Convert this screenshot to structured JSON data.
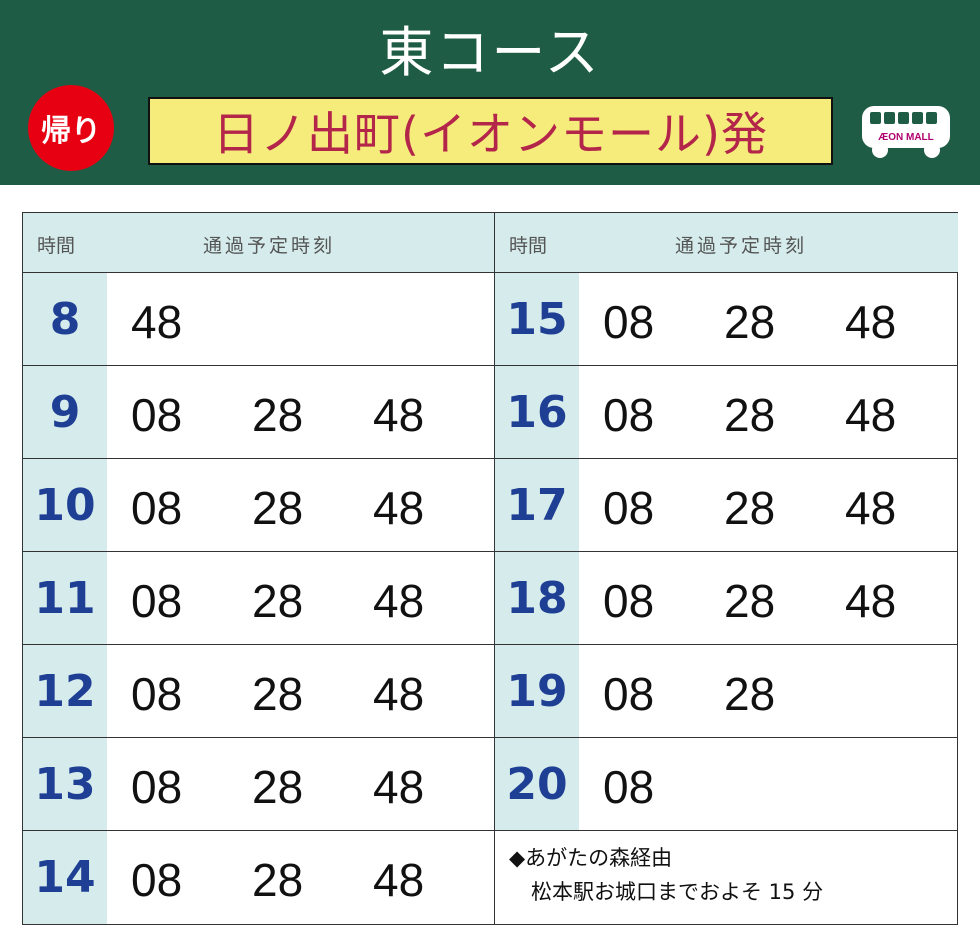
{
  "header": {
    "title": "東コース",
    "badge": "帰り",
    "origin": "日ノ出町(イオンモール)発",
    "bus_logo": "ÆON MALL"
  },
  "colors": {
    "banner": "#1f5c45",
    "badge": "#e60012",
    "origin_bg": "#f6ec7c",
    "origin_text": "#b3264a",
    "hour_text": "#1f3f94",
    "hour_bg": "#d6ecec"
  },
  "table": {
    "col_hour": "時間",
    "col_times": "通過予定時刻",
    "left": [
      {
        "hour": "8",
        "minutes": [
          "48"
        ]
      },
      {
        "hour": "9",
        "minutes": [
          "08",
          "28",
          "48"
        ]
      },
      {
        "hour": "10",
        "minutes": [
          "08",
          "28",
          "48"
        ]
      },
      {
        "hour": "11",
        "minutes": [
          "08",
          "28",
          "48"
        ]
      },
      {
        "hour": "12",
        "minutes": [
          "08",
          "28",
          "48"
        ]
      },
      {
        "hour": "13",
        "minutes": [
          "08",
          "28",
          "48"
        ]
      },
      {
        "hour": "14",
        "minutes": [
          "08",
          "28",
          "48"
        ]
      }
    ],
    "right": [
      {
        "hour": "15",
        "minutes": [
          "08",
          "28",
          "48"
        ]
      },
      {
        "hour": "16",
        "minutes": [
          "08",
          "28",
          "48"
        ]
      },
      {
        "hour": "17",
        "minutes": [
          "08",
          "28",
          "48"
        ]
      },
      {
        "hour": "18",
        "minutes": [
          "08",
          "28",
          "48"
        ]
      },
      {
        "hour": "19",
        "minutes": [
          "08",
          "28"
        ]
      },
      {
        "hour": "20",
        "minutes": [
          "08"
        ]
      }
    ],
    "note": {
      "line1": "◆あがたの森経由",
      "line2": "松本駅お城口までおよそ 15 分"
    }
  }
}
